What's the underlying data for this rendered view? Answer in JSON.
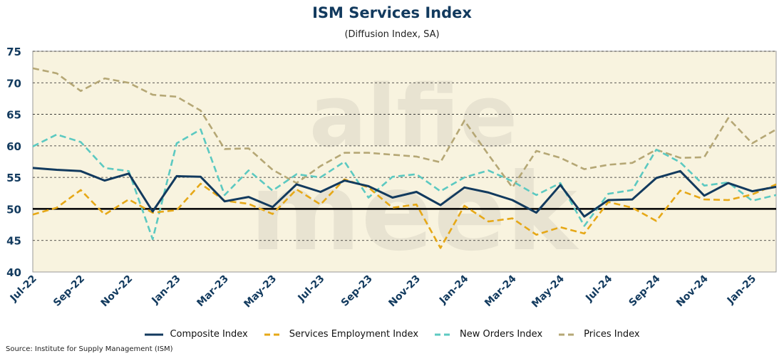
{
  "chart_data": {
    "type": "line",
    "title": "ISM Services Index",
    "subtitle": "(Diffusion Index, SA)",
    "source": "Source: Institute for Supply Management (ISM)",
    "watermark": "alfie meek",
    "ylim": [
      40,
      75
    ],
    "yticks": [
      40,
      45,
      50,
      55,
      60,
      65,
      70,
      75
    ],
    "reference_line": 50,
    "grid": "horizontal dashed",
    "legend_position": "bottom",
    "background_color": "#f8f3df",
    "x": [
      "Jul-22",
      "Aug-22",
      "Sep-22",
      "Oct-22",
      "Nov-22",
      "Dec-22",
      "Jan-23",
      "Feb-23",
      "Mar-23",
      "Apr-23",
      "May-23",
      "Jun-23",
      "Jul-23",
      "Aug-23",
      "Sep-23",
      "Oct-23",
      "Nov-23",
      "Dec-23",
      "Jan-24",
      "Feb-24",
      "Mar-24",
      "Apr-24",
      "May-24",
      "Jun-24",
      "Jul-24",
      "Aug-24",
      "Sep-24",
      "Oct-24",
      "Nov-24",
      "Dec-24",
      "Jan-25",
      "Feb-25"
    ],
    "xtick_labels": [
      "Jul-22",
      "Sep-22",
      "Nov-22",
      "Jan-23",
      "Mar-23",
      "May-23",
      "Jul-23",
      "Sep-23",
      "Nov-23",
      "Jan-24",
      "Mar-24",
      "May-24",
      "Jul-24",
      "Sep-24",
      "Nov-24",
      "Jan-25"
    ],
    "series": [
      {
        "name": "Composite Index",
        "color": "#123a5e",
        "dash": "solid",
        "values": [
          56.5,
          56.2,
          56.0,
          54.5,
          55.6,
          49.6,
          55.2,
          55.1,
          51.2,
          51.9,
          50.3,
          53.9,
          52.7,
          54.5,
          53.6,
          51.8,
          52.7,
          50.6,
          53.4,
          52.6,
          51.4,
          49.4,
          53.8,
          48.8,
          51.4,
          51.5,
          54.9,
          56.0,
          52.1,
          54.1,
          52.8,
          53.5
        ]
      },
      {
        "name": "Services Employment Index",
        "color": "#e6a817",
        "dash": "dashed",
        "values": [
          49.1,
          50.2,
          53.0,
          49.1,
          51.5,
          49.4,
          49.8,
          54.0,
          51.3,
          50.8,
          49.2,
          53.1,
          50.7,
          54.7,
          53.4,
          50.2,
          50.7,
          43.8,
          50.5,
          48.0,
          48.5,
          45.9,
          47.1,
          46.1,
          51.1,
          50.2,
          48.1,
          52.9,
          51.5,
          51.4,
          52.3,
          53.9
        ]
      },
      {
        "name": "New Orders Index",
        "color": "#5cc9c1",
        "dash": "dashed",
        "values": [
          59.9,
          61.8,
          60.6,
          56.5,
          56.0,
          45.2,
          60.4,
          62.6,
          52.2,
          56.1,
          52.9,
          55.5,
          55.0,
          57.5,
          51.8,
          55.1,
          55.5,
          52.8,
          55.0,
          56.1,
          54.4,
          52.2,
          54.1,
          47.3,
          52.4,
          53.0,
          59.4,
          57.4,
          53.7,
          54.2,
          51.3,
          52.2
        ]
      },
      {
        "name": "Prices Index",
        "color": "#b5a775",
        "dash": "dashed",
        "values": [
          72.3,
          71.5,
          68.7,
          70.7,
          70.0,
          68.1,
          67.8,
          65.6,
          59.5,
          59.6,
          56.2,
          54.1,
          56.8,
          58.9,
          58.9,
          58.6,
          58.3,
          57.4,
          64.0,
          58.6,
          53.4,
          59.2,
          58.1,
          56.3,
          57.0,
          57.3,
          59.4,
          58.1,
          58.2,
          64.4,
          60.4,
          62.6
        ]
      }
    ]
  }
}
